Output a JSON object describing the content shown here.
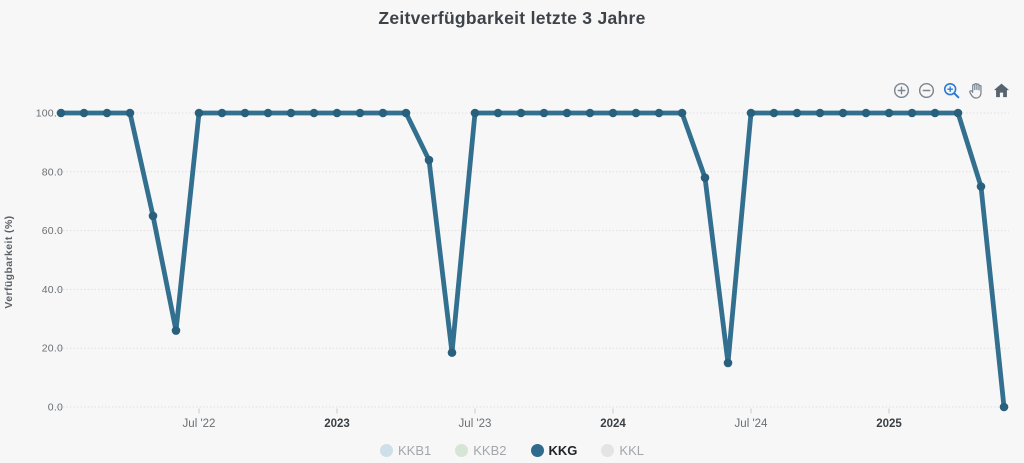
{
  "title": "Zeitverfügbarkeit letzte 3 Jahre",
  "toolbar": {
    "buttons": [
      {
        "name": "zoom-in",
        "icon": "circle-plus-icon",
        "active": false
      },
      {
        "name": "zoom-out",
        "icon": "circle-minus-icon",
        "active": false
      },
      {
        "name": "box-zoom",
        "icon": "magnifier-plus-icon",
        "active": true
      },
      {
        "name": "pan",
        "icon": "hand-icon",
        "active": false
      },
      {
        "name": "reset",
        "icon": "home-icon",
        "active": false
      }
    ]
  },
  "colors": {
    "background": "#f7f7f7",
    "line": "#33708f",
    "marker": "#28607e",
    "grid": "#dfdfdf",
    "tick_mark": "#c9c9c9",
    "tick_text": "#6a6f73",
    "tick_text_bold": "#3b4045",
    "axis_title": "#5c6166",
    "title_text": "#3d4348",
    "legend_inactive_text": "#a3a7ab",
    "legend_active_text": "#1f2326",
    "toolbar_icon": "#7c8792",
    "toolbar_icon_dark": "#566370",
    "toolbar_active": "#2e7bd2"
  },
  "chart_data": {
    "type": "line",
    "title": "Zeitverfügbarkeit letzte 3 Jahre",
    "xlabel": "",
    "ylabel": "Verfügbarkeit (%)",
    "ylim": [
      0,
      100
    ],
    "yticks": [
      0,
      20,
      40,
      60,
      80,
      100
    ],
    "ytick_labels": [
      "0.0",
      "20.0",
      "40.0",
      "60.0",
      "80.0",
      "100.0"
    ],
    "grid": "horizontal-only",
    "legend_position": "bottom-center",
    "xticks": [
      {
        "label": "Jul '22",
        "month_index": 6,
        "bold": false
      },
      {
        "label": "2023",
        "month_index": 12,
        "bold": true
      },
      {
        "label": "Jul '23",
        "month_index": 18,
        "bold": false
      },
      {
        "label": "2024",
        "month_index": 24,
        "bold": true
      },
      {
        "label": "Jul '24",
        "month_index": 30,
        "bold": false
      },
      {
        "label": "2025",
        "month_index": 36,
        "bold": true
      }
    ],
    "series": [
      {
        "name": "KKG",
        "color": "#33708f",
        "visible": true,
        "x": [
          "2022-01",
          "2022-02",
          "2022-03",
          "2022-04",
          "2022-05",
          "2022-06",
          "2022-07",
          "2022-08",
          "2022-09",
          "2022-10",
          "2022-11",
          "2022-12",
          "2023-01",
          "2023-02",
          "2023-03",
          "2023-04",
          "2023-05",
          "2023-06",
          "2023-07",
          "2023-08",
          "2023-09",
          "2023-10",
          "2023-11",
          "2023-12",
          "2024-01",
          "2024-02",
          "2024-03",
          "2024-04",
          "2024-05",
          "2024-06",
          "2024-07",
          "2024-08",
          "2024-09",
          "2024-10",
          "2024-11",
          "2024-12",
          "2025-01",
          "2025-02",
          "2025-03",
          "2025-04",
          "2025-05",
          "2025-06"
        ],
        "values": [
          100,
          100,
          100,
          100,
          65,
          26,
          100,
          100,
          100,
          100,
          100,
          100,
          100,
          100,
          100,
          100,
          84,
          18.5,
          100,
          100,
          100,
          100,
          100,
          100,
          100,
          100,
          100,
          100,
          78,
          15,
          100,
          100,
          100,
          100,
          100,
          100,
          100,
          100,
          100,
          100,
          75,
          0
        ]
      }
    ],
    "legend": [
      {
        "label": "KKB1",
        "color": "#cfdfe9",
        "active": false
      },
      {
        "label": "KKB2",
        "color": "#d7e5d7",
        "active": false
      },
      {
        "label": "KKG",
        "color": "#2f6b8d",
        "active": true
      },
      {
        "label": "KKL",
        "color": "#e4e4e4",
        "active": false
      }
    ]
  }
}
